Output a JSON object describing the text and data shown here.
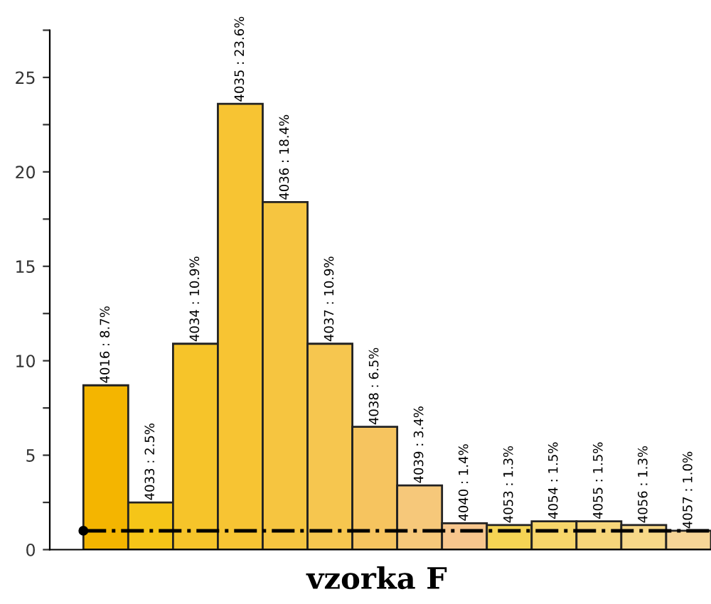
{
  "chart_data": {
    "type": "bar",
    "title": "vzorka F",
    "categories": [
      null,
      null,
      null,
      null,
      null,
      null,
      null,
      null,
      null,
      null,
      null,
      null,
      null,
      null
    ],
    "values": [
      8.7,
      2.5,
      10.9,
      23.6,
      18.4,
      10.9,
      6.5,
      3.4,
      1.4,
      1.3,
      1.5,
      1.5,
      1.3,
      1.0
    ],
    "value_labels": [
      "4016 : 8.7%",
      "4033 : 2.5%",
      "4034 : 10.9%",
      "4035 : 23.6%",
      "4036 : 18.4%",
      "4037 : 10.9%",
      "4038 : 6.5%",
      "4039 : 3.4%",
      "4040 : 1.4%",
      "4053 : 1.3%",
      "4054 : 1.5%",
      "4055 : 1.5%",
      "4056 : 1.3%",
      "4057 : 1.0%"
    ],
    "colors": [
      "#f4b500",
      "#f5c518",
      "#f6c42a",
      "#f7c433",
      "#f6c540",
      "#f6c64f",
      "#f6c45f",
      "#f6c87a",
      "#f7c68d",
      "#f5d454",
      "#f7d66a",
      "#f7d67a",
      "#f7d888",
      "#f6d597"
    ],
    "ylim": [
      0,
      27.5
    ],
    "yticks": [
      0,
      {
        "value": 2.5,
        "label": null
      },
      5,
      {
        "value": 7.5,
        "label": null
      },
      10,
      {
        "value": 12.5,
        "label": null
      },
      15,
      {
        "value": 17.5,
        "label": null
      },
      20,
      {
        "value": 22.5,
        "label": null
      },
      25,
      {
        "value": 27.5,
        "label": null
      }
    ],
    "ref_lines": [
      {
        "axis": "y",
        "value": 1,
        "color": "#000000",
        "line_style": "dashdot"
      }
    ],
    "tick_labels": "y",
    "grid": false,
    "legend": false
  }
}
